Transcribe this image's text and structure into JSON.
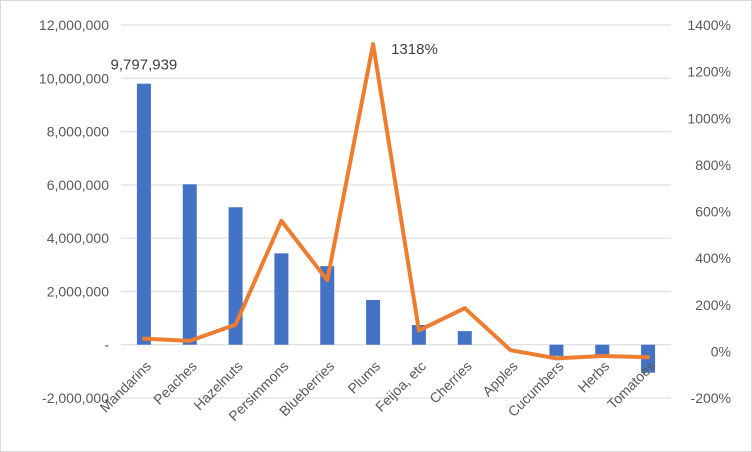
{
  "chart_data": {
    "type": "bar+line",
    "categories": [
      "Mandarins",
      "Peaches",
      "Hazelnuts",
      "Persimmons",
      "Blueberries",
      "Plums",
      "Feijoa, etc",
      "Cherries",
      "Apples",
      "Cucumbers",
      "Herbs",
      "Tomatoes"
    ],
    "series": [
      {
        "type": "bar",
        "axis": "left",
        "color": "#4472C4",
        "values": [
          9797939,
          6020000,
          5160000,
          3430000,
          2950000,
          1680000,
          740000,
          510000,
          0,
          -420000,
          -400000,
          -1050000
        ]
      },
      {
        "type": "line",
        "axis": "right",
        "color": "#ED7D31",
        "values": [
          55,
          45,
          115,
          560,
          305,
          1318,
          90,
          185,
          5,
          -30,
          -20,
          -25
        ]
      }
    ],
    "y_left": {
      "ylim": [
        -2000000,
        12000000
      ],
      "ticks": [
        -2000000,
        0,
        2000000,
        4000000,
        6000000,
        8000000,
        10000000,
        12000000
      ],
      "tick_labels": [
        "-2,000,000",
        "-",
        "2,000,000",
        "4,000,000",
        "6,000,000",
        "8,000,000",
        "10,000,000",
        "12,000,000"
      ]
    },
    "y_right": {
      "ylim": [
        -200,
        1400
      ],
      "ticks": [
        -200,
        0,
        200,
        400,
        600,
        800,
        1000,
        1200,
        1400
      ],
      "tick_labels": [
        "-200%",
        "0%",
        "200%",
        "400%",
        "600%",
        "800%",
        "1000%",
        "1200%",
        "1400%"
      ]
    },
    "annotations": [
      {
        "series": 0,
        "index": 0,
        "text": "9,797,939"
      },
      {
        "series": 1,
        "index": 5,
        "text": "1318%"
      }
    ],
    "grid": true,
    "legend": "none"
  }
}
